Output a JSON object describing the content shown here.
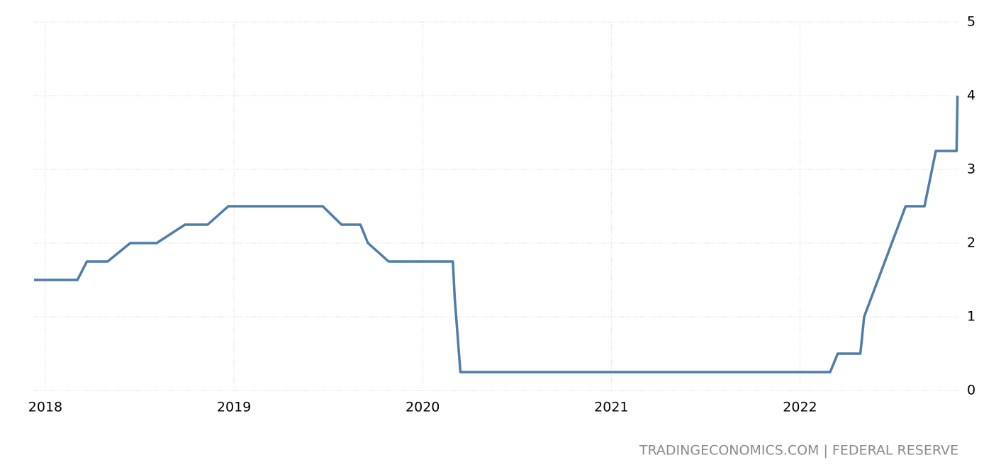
{
  "chart_data": {
    "type": "line",
    "source": "TRADINGECONOMICS.COM | FEDERAL RESERVE",
    "x": [
      2017.94,
      2018.17,
      2018.22,
      2018.33,
      2018.45,
      2018.59,
      2018.74,
      2018.86,
      2018.97,
      2019.47,
      2019.57,
      2019.67,
      2019.71,
      2019.82,
      2020.16,
      2020.17,
      2020.2,
      2022.16,
      2022.2,
      2022.32,
      2022.34,
      2022.56,
      2022.66,
      2022.72,
      2022.83,
      2022.835
    ],
    "series": [
      {
        "color": "#4e7cab",
        "values": [
          1.5,
          1.5,
          1.75,
          1.75,
          2.0,
          2.0,
          2.25,
          2.25,
          2.5,
          2.5,
          2.25,
          2.25,
          2.0,
          1.75,
          1.75,
          1.25,
          0.25,
          0.25,
          0.5,
          0.5,
          1.0,
          2.5,
          2.5,
          3.25,
          3.25,
          4.0
        ]
      }
    ],
    "xlim": [
      2017.94,
      2022.84
    ],
    "xticks": [
      2018,
      2019,
      2020,
      2021,
      2022
    ],
    "ylim": [
      0,
      5
    ],
    "yticks": [
      0,
      1,
      2,
      3,
      4,
      5
    ],
    "grid": true
  }
}
